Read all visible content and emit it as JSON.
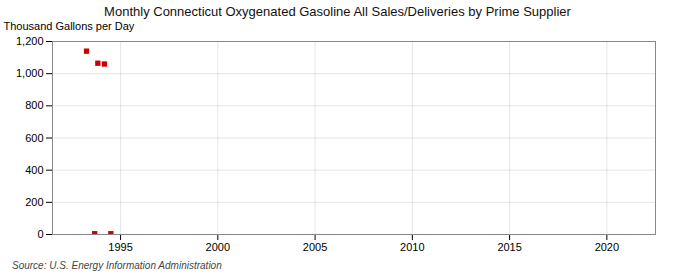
{
  "chart_data": {
    "type": "scatter",
    "title": "Monthly Connecticut Oxygenated Gasoline All Sales/Deliveries by Prime Supplier",
    "ylabel": "Thousand Gallons per Day",
    "source": "Source: U.S. Energy Information Administration",
    "x": [
      1993.25,
      1993.83,
      1994.17,
      1993.67,
      1994.5
    ],
    "values": [
      1140,
      1065,
      1060,
      5,
      5
    ],
    "color": "#cc0000",
    "marker": "square",
    "xlim": [
      1991.5,
      2022.5
    ],
    "ylim": [
      0,
      1200
    ],
    "xticks": [
      1995,
      2000,
      2005,
      2010,
      2015,
      2020
    ],
    "yticks": [
      0,
      200,
      400,
      600,
      800,
      {
        "value": 1000,
        "label": "1,000"
      },
      {
        "value": 1200,
        "label": "1,200"
      }
    ],
    "grid": true
  }
}
